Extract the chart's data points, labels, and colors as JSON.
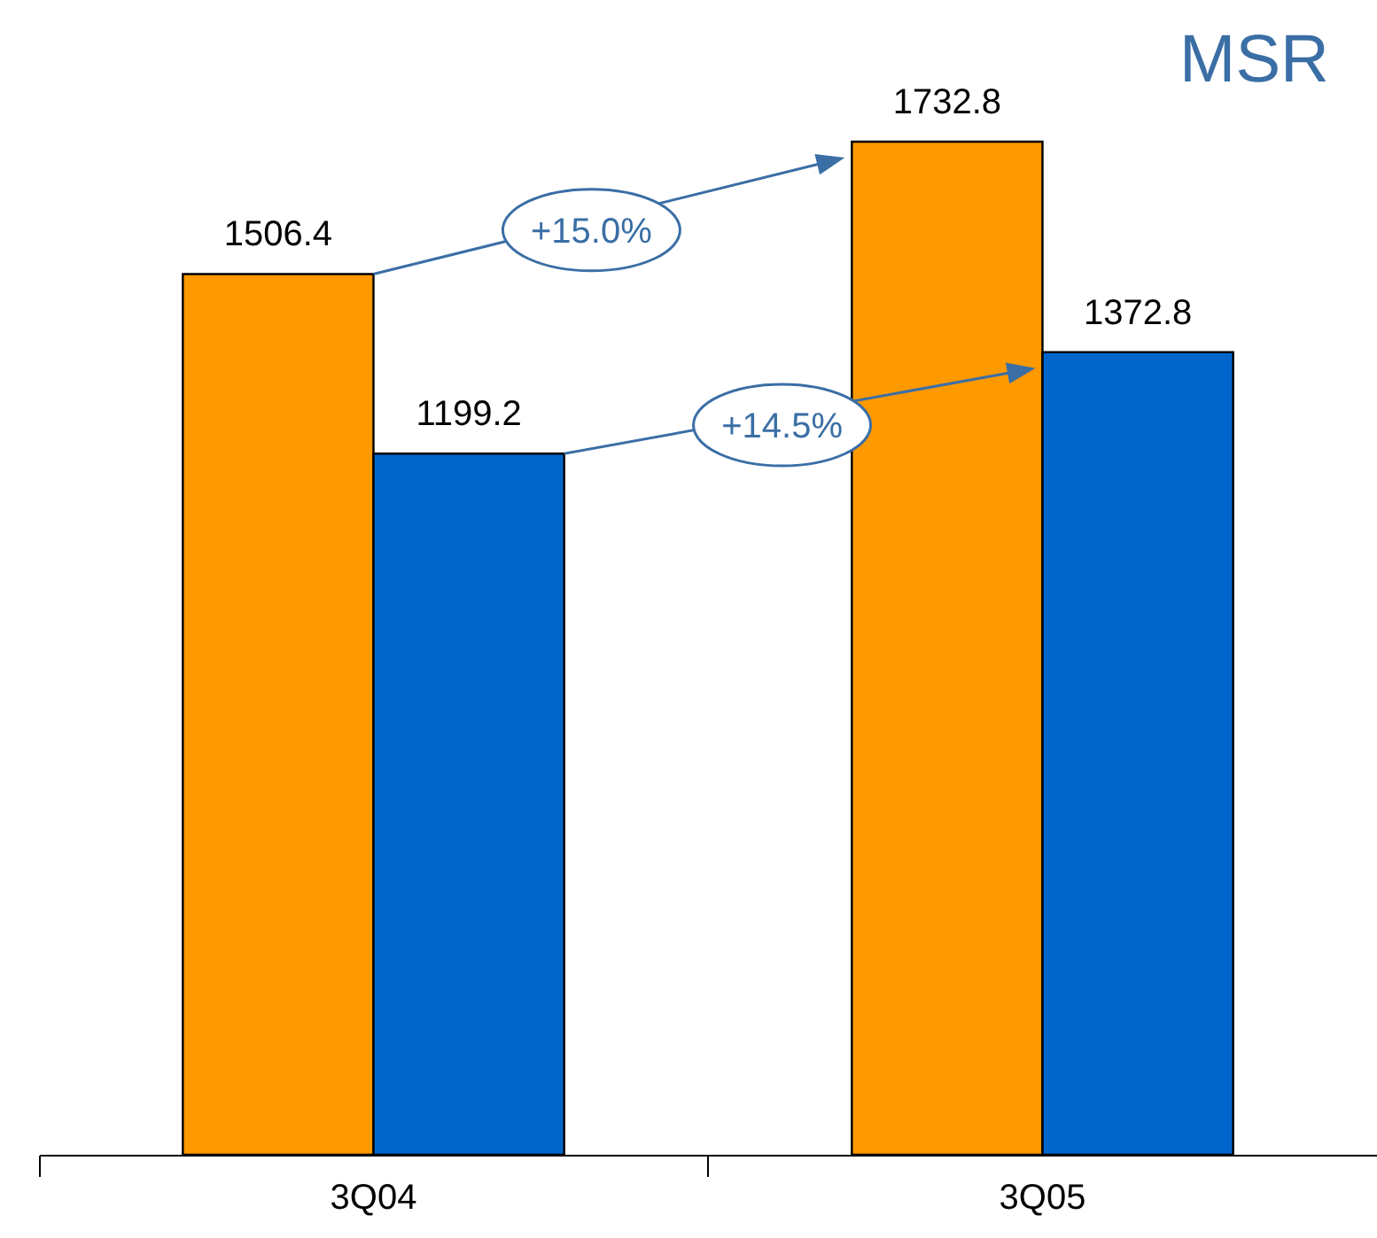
{
  "chart_data": {
    "type": "bar",
    "title": "MSR",
    "categories": [
      "3Q04",
      "3Q05"
    ],
    "series": [
      {
        "color": "#ff9900",
        "values": [
          1506.4,
          1732.8
        ],
        "value_labels": [
          "1506.4",
          "1732.8"
        ]
      },
      {
        "color": "#0066cc",
        "values": [
          1199.2,
          1372.8
        ],
        "value_labels": [
          "1199.2",
          "1372.8"
        ]
      }
    ],
    "legend": false,
    "grid": false,
    "annotations": [
      "+15.0%",
      "+14.5%"
    ]
  }
}
